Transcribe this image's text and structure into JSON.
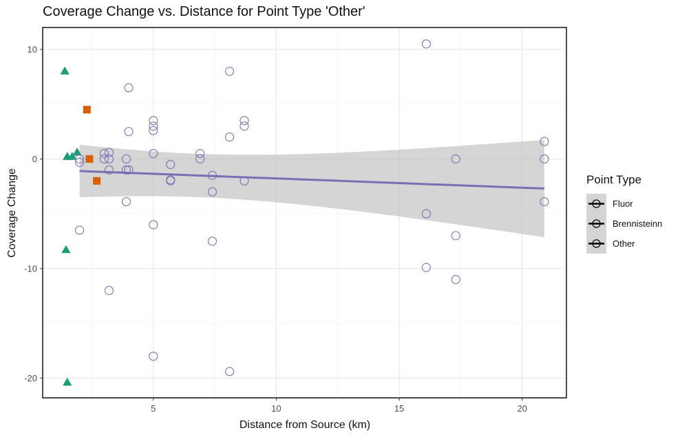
{
  "chart_data": {
    "type": "scatter",
    "title": "Coverage Change vs. Distance for Point Type 'Other'",
    "xlabel": "Distance from Source (km)",
    "ylabel": "Coverage Change",
    "xlim": [
      0.5,
      21.8
    ],
    "ylim": [
      -21.8,
      12
    ],
    "xticks": [
      5,
      10,
      15,
      20
    ],
    "yticks": [
      -20,
      -10,
      0,
      10
    ],
    "xtick_labels": [
      "5",
      "10",
      "15",
      "20"
    ],
    "ytick_labels": [
      "-20",
      "-10",
      "0",
      "10"
    ],
    "grid": true,
    "legend": {
      "title": "Point Type",
      "position": "right",
      "entries": [
        "Fluor",
        "Brennisteinn",
        "Other"
      ]
    },
    "colors": {
      "fluor": "#1b9e77",
      "brennisteinn": "#d95f02",
      "other": "#7570b3",
      "trend": "#7570b3",
      "ribbon": "#bebebe"
    },
    "series": [
      {
        "name": "Fluor",
        "marker": "triangle",
        "x": [
          1.4,
          1.45,
          1.5,
          1.5,
          1.7,
          1.9
        ],
        "y": [
          8,
          -8.3,
          -20.4,
          0.2,
          0.2,
          0.6
        ]
      },
      {
        "name": "Brennisteinn",
        "marker": "square",
        "x": [
          2.3,
          2.4,
          2.7
        ],
        "y": [
          4.5,
          0,
          -2
        ]
      },
      {
        "name": "Other",
        "marker": "open-circle",
        "x": [
          2.0,
          2.0,
          2.0,
          3.0,
          3.0,
          3.2,
          3.2,
          3.2,
          3.2,
          3.9,
          3.9,
          3.9,
          4.0,
          4.0,
          4.0,
          5.0,
          5.0,
          5.0,
          5.0,
          5.0,
          5.0,
          5.7,
          5.7,
          5.7,
          6.9,
          6.9,
          7.4,
          7.4,
          7.4,
          8.1,
          8.1,
          8.1,
          8.7,
          8.7,
          8.7,
          16.1,
          16.1,
          16.1,
          17.3,
          17.3,
          17.3,
          20.9,
          20.9,
          20.9
        ],
        "y": [
          0,
          -0.3,
          -6.5,
          0.5,
          0,
          0.6,
          0,
          -1,
          -12,
          0,
          -1,
          -3.9,
          6.5,
          2.5,
          -1,
          3.5,
          3,
          2.6,
          0.5,
          -6,
          -18,
          -0.5,
          -1.9,
          -2,
          0.5,
          0,
          -1.5,
          -3,
          -7.5,
          8,
          2,
          -19.4,
          3.5,
          3,
          -2,
          10.5,
          -5,
          -9.9,
          0,
          -7,
          -11,
          1.6,
          0,
          -3.9
        ]
      }
    ],
    "trend": {
      "method": "linear",
      "x": [
        2.0,
        20.9
      ],
      "y": [
        -1.1,
        -2.7
      ],
      "ci_lower": [
        -3.6,
        -7.1
      ],
      "ci_upper": [
        1.2,
        1.8
      ]
    }
  }
}
